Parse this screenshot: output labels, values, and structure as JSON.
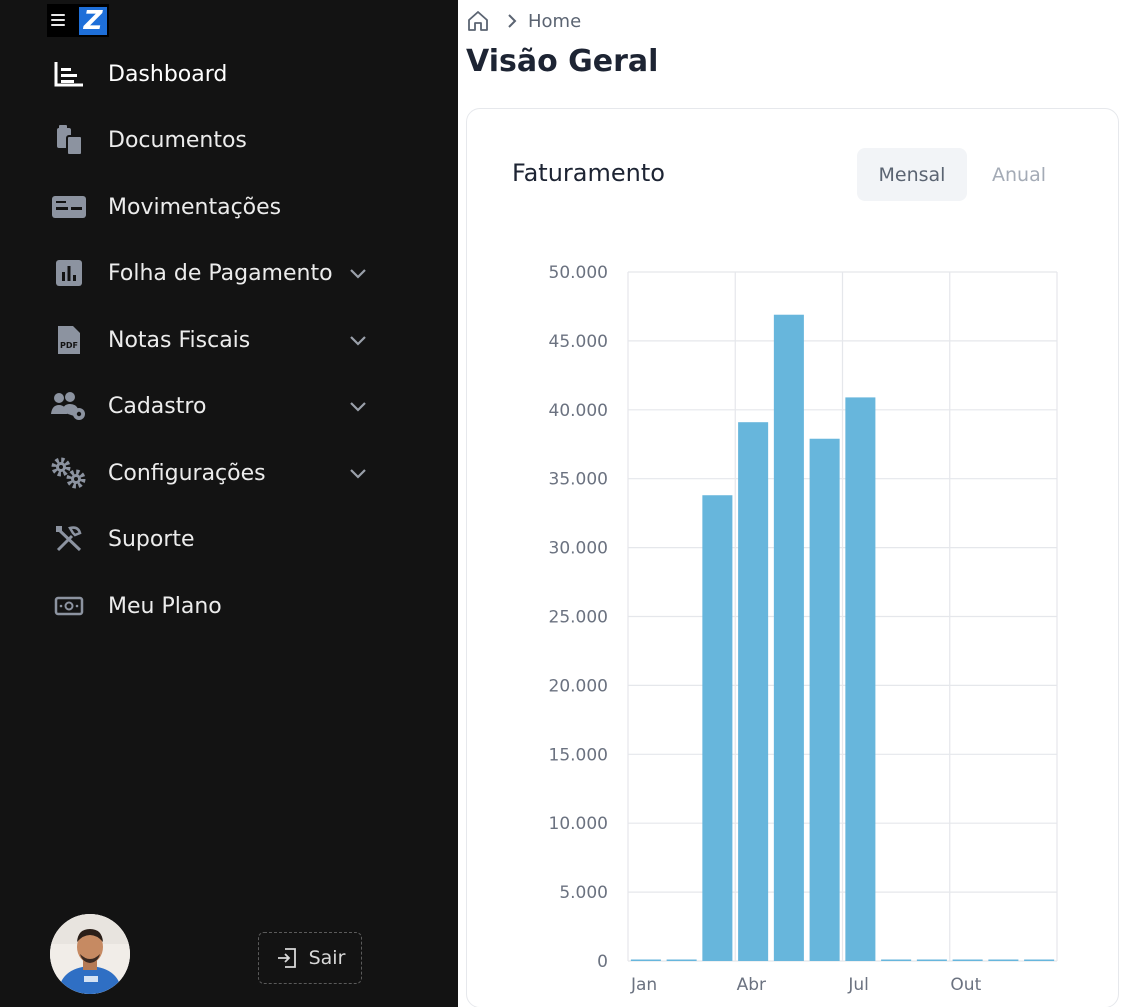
{
  "sidebar": {
    "items": [
      {
        "label": "Dashboard",
        "icon": "dashboard-icon",
        "expandable": false
      },
      {
        "label": "Documentos",
        "icon": "documents-icon",
        "expandable": false
      },
      {
        "label": "Movimentações",
        "icon": "movements-icon",
        "expandable": false
      },
      {
        "label": "Folha de Pagamento",
        "icon": "payroll-chart-icon",
        "expandable": true
      },
      {
        "label": "Notas Fiscais",
        "icon": "pdf-icon",
        "expandable": true
      },
      {
        "label": "Cadastro",
        "icon": "users-gear-icon",
        "expandable": true
      },
      {
        "label": "Configurações",
        "icon": "gears-icon",
        "expandable": true
      },
      {
        "label": "Suporte",
        "icon": "tools-icon",
        "expandable": false
      },
      {
        "label": "Meu Plano",
        "icon": "money-icon",
        "expandable": false
      }
    ],
    "logout_label": "Sair"
  },
  "breadcrumb": {
    "home": "Home"
  },
  "page": {
    "title": "Visão Geral"
  },
  "card": {
    "title": "Faturamento",
    "tabs": [
      "Mensal",
      "Anual"
    ],
    "active_tab": "Mensal"
  },
  "colors": {
    "sidebar_bg": "#131313",
    "bar": "#67b6dc",
    "accent": "#1e6fd9"
  },
  "chart_data": {
    "type": "bar",
    "categories": [
      "Jan",
      "Fev",
      "Mar",
      "Abr",
      "Mai",
      "Jun",
      "Jul",
      "Ago",
      "Set",
      "Out",
      "Nov",
      "Dez"
    ],
    "x_tick_labels": [
      "Jan",
      "Abr",
      "Jul",
      "Out"
    ],
    "values": [
      0,
      0,
      33800,
      39100,
      46900,
      37900,
      40900,
      0,
      0,
      0,
      0,
      0
    ],
    "y_tick_labels": [
      "0",
      "5.000",
      "10.000",
      "15.000",
      "20.000",
      "25.000",
      "30.000",
      "35.000",
      "40.000",
      "45.000",
      "50.000"
    ],
    "ylim": [
      0,
      50000
    ],
    "grid": true,
    "title": "",
    "xlabel": "",
    "ylabel": ""
  }
}
